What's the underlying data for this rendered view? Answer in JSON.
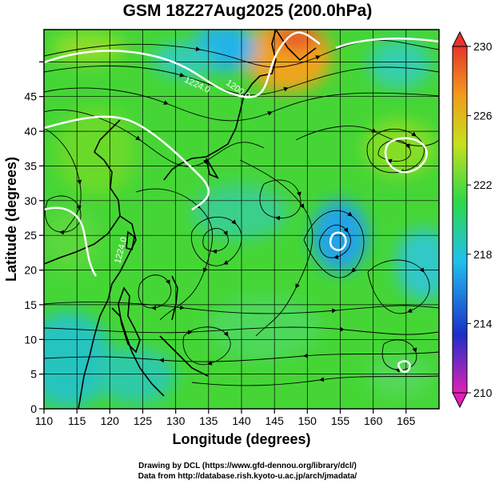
{
  "title": "GSM 18Z27Aug2025 (200.0hPa)",
  "x_axis": {
    "label": "Longitude (degrees)",
    "range": [
      110,
      170
    ],
    "ticks": [
      "110",
      "115",
      "120",
      "125",
      "130",
      "135",
      "140",
      "145",
      "150",
      "155",
      "160",
      "165"
    ]
  },
  "y_axis": {
    "label": "Latitude (degrees)",
    "range": [
      0,
      50
    ],
    "ticks": [
      "0",
      "5",
      "10",
      "15",
      "20",
      "25",
      "30",
      "35",
      "40",
      "45"
    ]
  },
  "colorbar": {
    "range": [
      210,
      230
    ],
    "ticks": [
      "210",
      "214",
      "218",
      "222",
      "226",
      "230"
    ],
    "colors": [
      "#e21fb6",
      "#1b2fc9",
      "#20c0ee",
      "#2bd84a",
      "#c6e01e",
      "#f29b1c",
      "#e7352c"
    ]
  },
  "contour_labels": [
    "1224.0",
    "1200.0",
    "1224.0"
  ],
  "credits": [
    "Drawing by DCL (https://www.gfd-dennou.org/library/dcl/)",
    "Data from http://database.rish.kyoto-u.ac.jp/arch/jmadata/"
  ],
  "chart_data": {
    "type": "heatmap",
    "title": "GSM 18Z27Aug2025 (200.0hPa)",
    "xlabel": "Longitude (degrees)",
    "ylabel": "Latitude (degrees)",
    "xlim": [
      110,
      170
    ],
    "ylim": [
      0,
      50
    ],
    "colorbar_range": [
      210,
      230
    ],
    "features": [
      {
        "kind": "warm maximum",
        "lon": 145,
        "lat": 46,
        "value": 228
      },
      {
        "kind": "cold minimum",
        "lon": 134,
        "lat": 49,
        "value": 218
      },
      {
        "kind": "cold minimum",
        "lon": 154,
        "lat": 25,
        "value": 217
      },
      {
        "kind": "anticyclone",
        "lon": 162,
        "lat": 37,
        "value": 223
      },
      {
        "kind": "cold area",
        "lon": 112,
        "lat": 4,
        "value": 219
      }
    ]
  }
}
